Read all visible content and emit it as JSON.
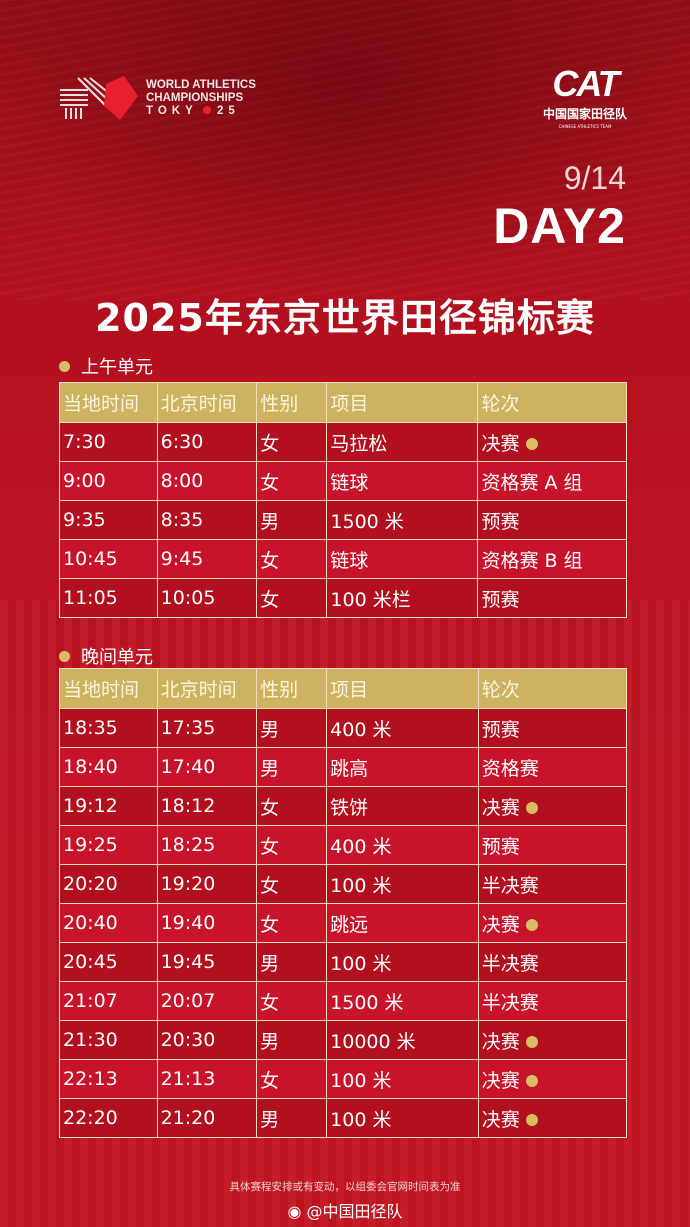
{
  "header": {
    "event_logo": {
      "line1": "WORLD ATHLETICS",
      "line2": "CHAMPIONSHIPS",
      "line3": "TOKY",
      "line3b": "25"
    },
    "team_logo": {
      "mark": "CAT",
      "name_cn": "中国国家田径队",
      "name_en": "CHINESE ATHLETICS TEAM"
    },
    "date": "9/14",
    "day": "DAY2",
    "title": "2025年东京世界田径锦标赛"
  },
  "columns": [
    "当地时间",
    "北京时间",
    "性别",
    "项目",
    "轮次"
  ],
  "morning": {
    "label": "上午单元",
    "rows": [
      {
        "local": "7:30",
        "beijing": "6:30",
        "gender": "女",
        "event": "马拉松",
        "round": "决赛",
        "final": true
      },
      {
        "local": "9:00",
        "beijing": "8:00",
        "gender": "女",
        "event": "链球",
        "round": "资格赛 A 组",
        "final": false
      },
      {
        "local": "9:35",
        "beijing": "8:35",
        "gender": "男",
        "event": "1500 米",
        "round": "预赛",
        "final": false
      },
      {
        "local": "10:45",
        "beijing": "9:45",
        "gender": "女",
        "event": "链球",
        "round": "资格赛 B 组",
        "final": false
      },
      {
        "local": "11:05",
        "beijing": "10:05",
        "gender": "女",
        "event": "100 米栏",
        "round": "预赛",
        "final": false
      }
    ]
  },
  "evening": {
    "label": "晚间单元",
    "rows": [
      {
        "local": "18:35",
        "beijing": "17:35",
        "gender": "男",
        "event": "400 米",
        "round": "预赛",
        "final": false
      },
      {
        "local": "18:40",
        "beijing": "17:40",
        "gender": "男",
        "event": "跳高",
        "round": "资格赛",
        "final": false
      },
      {
        "local": "19:12",
        "beijing": "18:12",
        "gender": "女",
        "event": "铁饼",
        "round": "决赛",
        "final": true
      },
      {
        "local": "19:25",
        "beijing": "18:25",
        "gender": "女",
        "event": "400 米",
        "round": "预赛",
        "final": false
      },
      {
        "local": "20:20",
        "beijing": "19:20",
        "gender": "女",
        "event": "100 米",
        "round": "半决赛",
        "final": false
      },
      {
        "local": "20:40",
        "beijing": "19:40",
        "gender": "女",
        "event": "跳远",
        "round": "决赛",
        "final": true
      },
      {
        "local": "20:45",
        "beijing": "19:45",
        "gender": "男",
        "event": "100 米",
        "round": "半决赛",
        "final": false
      },
      {
        "local": "21:07",
        "beijing": "20:07",
        "gender": "女",
        "event": "1500 米",
        "round": "半决赛",
        "final": false
      },
      {
        "local": "21:30",
        "beijing": "20:30",
        "gender": "男",
        "event": "10000 米",
        "round": "决赛",
        "final": true
      },
      {
        "local": "22:13",
        "beijing": "21:13",
        "gender": "女",
        "event": "100 米",
        "round": "决赛",
        "final": true
      },
      {
        "local": "22:20",
        "beijing": "21:20",
        "gender": "男",
        "event": "100 米",
        "round": "决赛",
        "final": true
      }
    ]
  },
  "footer": {
    "note": "具体赛程安排或有变动，以组委会官网时间表为准",
    "weibo": "@中国田径队"
  },
  "colors": {
    "background": "#b8101f",
    "header_row": "#cdb35f",
    "final_marker": "#d8bd63"
  }
}
